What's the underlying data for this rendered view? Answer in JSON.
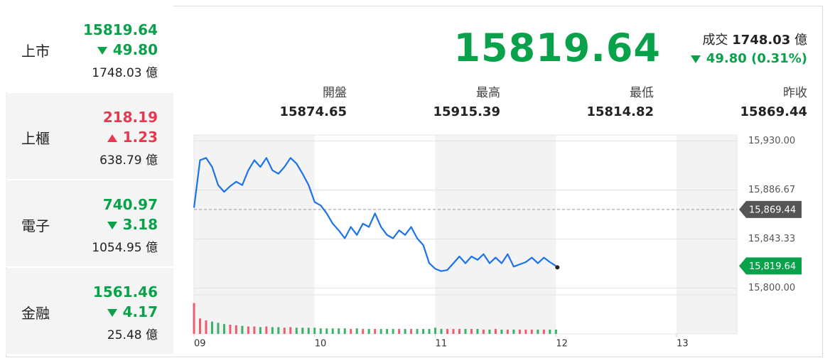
{
  "sidebar": [
    {
      "name": "上市",
      "price": "15819.64",
      "change": "49.80",
      "direction": "down",
      "volume": "1748.03"
    },
    {
      "name": "上櫃",
      "price": "218.19",
      "change": "1.23",
      "direction": "up",
      "volume": "638.79"
    },
    {
      "name": "電子",
      "price": "740.97",
      "change": "3.18",
      "direction": "down",
      "volume": "1054.95"
    },
    {
      "name": "金融",
      "price": "1561.46",
      "change": "4.17",
      "direction": "down",
      "volume": "25.48"
    }
  ],
  "volume_unit": "億",
  "up_color": "#e8384f",
  "down_color": "#0aa14b",
  "summary": {
    "price": "15819.64",
    "volume_label": "成交",
    "volume": "1748.03",
    "change": "49.80",
    "change_pct": "(0.31%)",
    "direction": "down",
    "stats": [
      {
        "label": "開盤",
        "value": "15874.65"
      },
      {
        "label": "最高",
        "value": "15915.39"
      },
      {
        "label": "最低",
        "value": "15814.82"
      },
      {
        "label": "昨收",
        "value": "15869.44"
      }
    ]
  },
  "chart_data": {
    "type": "line",
    "color": "#1a73e8",
    "x": [
      9,
      9.05,
      9.1,
      9.15,
      9.2,
      9.25,
      9.3,
      9.35,
      9.4,
      9.45,
      9.5,
      9.55,
      9.6,
      9.65,
      9.7,
      9.75,
      9.8,
      9.85,
      9.9,
      9.95,
      10,
      10.05,
      10.1,
      10.15,
      10.2,
      10.25,
      10.3,
      10.35,
      10.4,
      10.45,
      10.5,
      10.55,
      10.6,
      10.65,
      10.7,
      10.75,
      10.8,
      10.85,
      10.9,
      10.95,
      11,
      11.05,
      11.1,
      11.15,
      11.2,
      11.25,
      11.3,
      11.35,
      11.4,
      11.45,
      11.5,
      11.55,
      11.6,
      11.65,
      11.7,
      11.75,
      11.8,
      11.85,
      11.9,
      11.95,
      12
    ],
    "values": [
      15871,
      15913,
      15915,
      15907,
      15891,
      15885,
      15890,
      15894,
      15891,
      15904,
      15913,
      15907,
      15915,
      15904,
      15901,
      15907,
      15915,
      15910,
      15901,
      15891,
      15876,
      15873,
      15866,
      15857,
      15851,
      15844,
      15854,
      15847,
      15857,
      15854,
      15866,
      15854,
      15847,
      15844,
      15851,
      15847,
      15854,
      15844,
      15838,
      15822,
      15817,
      15815,
      15816,
      15822,
      15828,
      15822,
      15828,
      15825,
      15830,
      15822,
      15827,
      15822,
      15830,
      15819,
      15821,
      15823,
      15827,
      15822,
      15827,
      15823,
      15819.64
    ],
    "volume": [
      50,
      25,
      22,
      20,
      18,
      16,
      15,
      14,
      13,
      12,
      12,
      11,
      12,
      11,
      11,
      10,
      11,
      10,
      10,
      10,
      10,
      9,
      9,
      9,
      9,
      9,
      8,
      9,
      8,
      8,
      8,
      8,
      8,
      8,
      8,
      8,
      8,
      8,
      8,
      8,
      10,
      8,
      8,
      8,
      8,
      8,
      8,
      8,
      7,
      7,
      8,
      7,
      7,
      7,
      7,
      7,
      7,
      7,
      7,
      7,
      7
    ],
    "volume_lim": [
      0,
      60
    ],
    "xlim": [
      9,
      13.5
    ],
    "xticks": [
      {
        "value": 9,
        "label": "09"
      },
      10,
      11,
      12,
      13
    ],
    "ylim": [
      15796,
      15934
    ],
    "yticks": [
      {
        "value": 15930,
        "label": "15,930.00"
      },
      {
        "value": 15886.67,
        "label": "15,886.67"
      },
      {
        "value": 15843.33,
        "label": "15,843.33"
      },
      {
        "value": 15800,
        "label": "15,800.00"
      }
    ],
    "grid": true,
    "reference_lines": [
      {
        "value": 15869.44,
        "label": "15,869.44",
        "color": "#555555",
        "dashed": true
      },
      {
        "value": 15819.64,
        "label": "15,819.64",
        "color": "#0aa14b",
        "dashed": false
      }
    ]
  }
}
